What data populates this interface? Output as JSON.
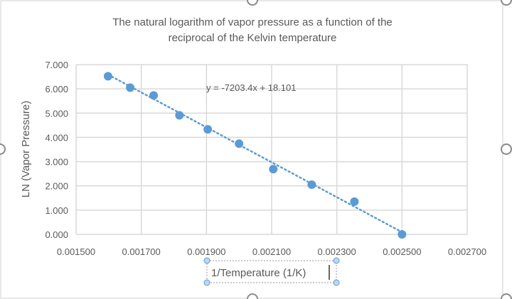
{
  "chart_data": {
    "type": "scatter",
    "title": "The natural logarithm of vapor pressure as a function of the reciprocal of the Kelvin temperature",
    "title_lines": [
      "The natural logarithm of vapor pressure as a function of the",
      "reciprocal of the Kelvin temperature"
    ],
    "xlabel": "1/Temperature (1/K)",
    "ylabel": "LN (Vapor Pressure)",
    "xlim": [
      0.0015,
      0.0027
    ],
    "ylim": [
      0,
      7
    ],
    "x_ticks": [
      "0.001500",
      "0.001700",
      "0.001900",
      "0.002100",
      "0.002300",
      "0.002500",
      "0.002700"
    ],
    "y_ticks": [
      "0.000",
      "1.000",
      "2.000",
      "3.000",
      "4.000",
      "5.000",
      "6.000",
      "7.000"
    ],
    "x_tick_values": [
      0.0015,
      0.0017,
      0.0019,
      0.0021,
      0.0023,
      0.0025,
      0.0027
    ],
    "y_tick_values": [
      0,
      1,
      2,
      3,
      4,
      5,
      6,
      7
    ],
    "grid": true,
    "points": [
      {
        "x": 0.001598,
        "y": 6.52
      },
      {
        "x": 0.001666,
        "y": 6.05
      },
      {
        "x": 0.001738,
        "y": 5.73
      },
      {
        "x": 0.001817,
        "y": 4.91
      },
      {
        "x": 0.001904,
        "y": 4.33
      },
      {
        "x": 0.002,
        "y": 3.74
      },
      {
        "x": 0.002105,
        "y": 2.69
      },
      {
        "x": 0.002223,
        "y": 2.05
      },
      {
        "x": 0.002354,
        "y": 1.35
      },
      {
        "x": 0.0025,
        "y": 0.0
      }
    ],
    "trendline": {
      "type": "linear",
      "slope": -7203.4,
      "intercept": 18.101,
      "label": "y = -7203.4x + 18.101"
    },
    "colors": {
      "marker": "#5b9bd5",
      "trendline": "#5b9bd5",
      "grid": "#d9d9d9",
      "text": "#595959"
    }
  }
}
